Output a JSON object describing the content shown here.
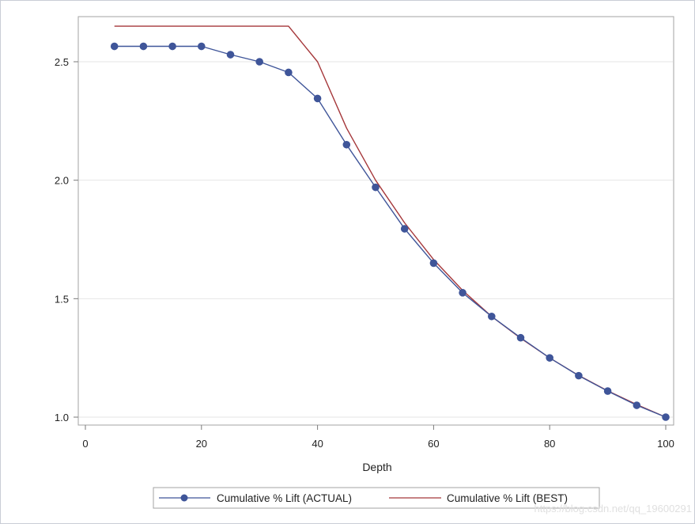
{
  "chart_data": {
    "type": "line",
    "title": "",
    "xlabel": "Depth",
    "ylabel": "",
    "xlim": [
      0,
      100
    ],
    "ylim": [
      1.0,
      2.65
    ],
    "x_ticks": [
      0,
      20,
      40,
      60,
      80,
      100
    ],
    "y_ticks": [
      1.0,
      1.5,
      2.0,
      2.5
    ],
    "x_tick_labels": [
      "0",
      "20",
      "40",
      "60",
      "80",
      "100"
    ],
    "y_tick_labels": [
      "1.0",
      "1.5",
      "2.0",
      "2.5"
    ],
    "grid": "horizontal",
    "legend_position": "bottom",
    "series": [
      {
        "name": "Cumulative % Lift (ACTUAL)",
        "color": "#3f5599",
        "markers": true,
        "x": [
          5,
          10,
          15,
          20,
          25,
          30,
          35,
          40,
          45,
          50,
          55,
          60,
          65,
          70,
          75,
          80,
          85,
          90,
          95,
          100
        ],
        "y": [
          2.565,
          2.565,
          2.565,
          2.565,
          2.53,
          2.5,
          2.455,
          2.345,
          2.15,
          1.97,
          1.795,
          1.65,
          1.525,
          1.425,
          1.335,
          1.25,
          1.175,
          1.11,
          1.05,
          1.0
        ]
      },
      {
        "name": "Cumulative % Lift (BEST)",
        "color": "#a5373a",
        "markers": false,
        "x": [
          5,
          10,
          15,
          20,
          25,
          30,
          35,
          40,
          45,
          50,
          55,
          60,
          65,
          70,
          75,
          80,
          85,
          90,
          95,
          100
        ],
        "y": [
          2.65,
          2.65,
          2.65,
          2.65,
          2.65,
          2.65,
          2.65,
          2.5,
          2.22,
          2.0,
          1.82,
          1.665,
          1.535,
          1.425,
          1.333,
          1.25,
          1.176,
          1.111,
          1.053,
          1.0
        ]
      }
    ]
  },
  "watermark": "https://blog.csdn.net/qq_19600291"
}
